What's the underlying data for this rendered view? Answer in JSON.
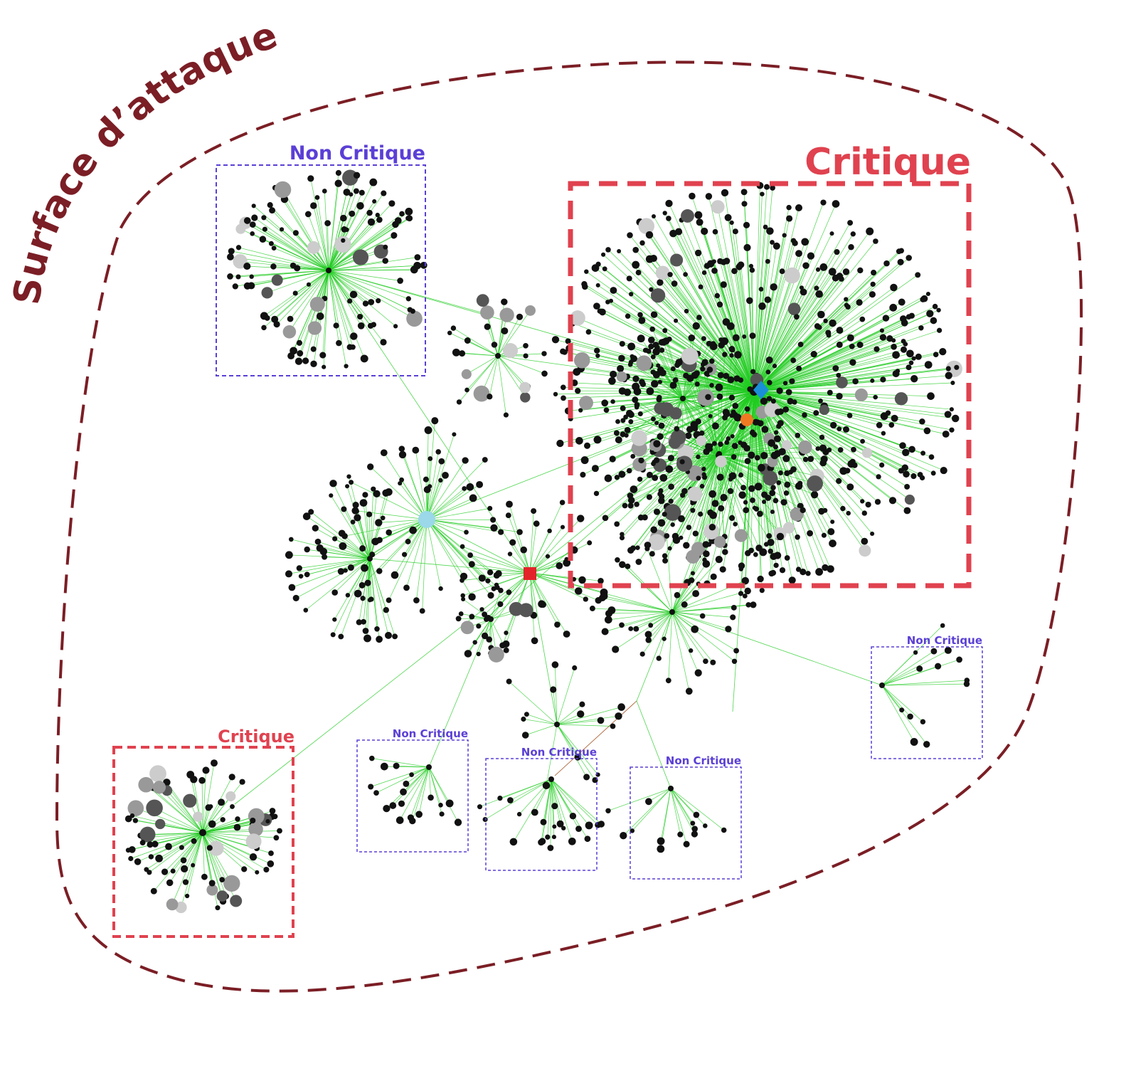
{
  "title": "Surface d’attaque",
  "colors": {
    "boundary": "#7b1e25",
    "critical": "#e0424f",
    "noncritical": "#5b3fd6",
    "edge": "#22cc22",
    "node_black": "#111111",
    "node_dark": "#555555",
    "node_grey": "#999999",
    "node_light": "#cccccc",
    "hub_red": "#e3232a",
    "hub_blue": "#1a8fd8",
    "hub_orange": "#f07a22",
    "hub_lightblue": "#9ad8ea"
  },
  "zones": [
    {
      "id": "critical-main",
      "label": "Critique",
      "kind": "critical"
    },
    {
      "id": "critical-small",
      "label": "Critique",
      "kind": "critical"
    },
    {
      "id": "noncritical-top",
      "label": "Non Critique",
      "kind": "noncritical"
    },
    {
      "id": "noncritical-b1",
      "label": "Non Critique",
      "kind": "noncritical"
    },
    {
      "id": "noncritical-b2",
      "label": "Non Critique",
      "kind": "noncritical"
    },
    {
      "id": "noncritical-b3",
      "label": "Non Critique",
      "kind": "noncritical"
    },
    {
      "id": "noncritical-right",
      "label": "Non Critique",
      "kind": "noncritical"
    }
  ]
}
